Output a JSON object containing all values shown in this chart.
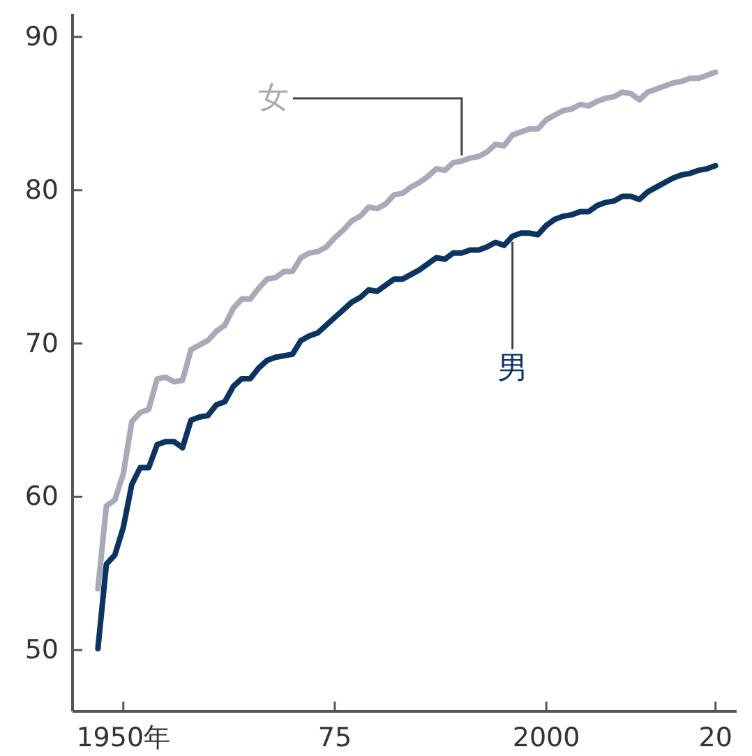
{
  "chart_data": {
    "type": "line",
    "x": [
      1947,
      1948,
      1949,
      1950,
      1951,
      1952,
      1953,
      1954,
      1955,
      1956,
      1957,
      1958,
      1959,
      1960,
      1961,
      1962,
      1963,
      1964,
      1965,
      1966,
      1967,
      1968,
      1969,
      1970,
      1971,
      1972,
      1973,
      1974,
      1975,
      1976,
      1977,
      1978,
      1979,
      1980,
      1981,
      1982,
      1983,
      1984,
      1985,
      1986,
      1987,
      1988,
      1989,
      1990,
      1991,
      1992,
      1993,
      1994,
      1995,
      1996,
      1997,
      1998,
      1999,
      2000,
      2001,
      2002,
      2003,
      2004,
      2005,
      2006,
      2007,
      2008,
      2009,
      2010,
      2011,
      2012,
      2013,
      2014,
      2015,
      2016,
      2017,
      2018,
      2019,
      2020
    ],
    "series": [
      {
        "name": "女",
        "color": "#a9a9ba",
        "values": [
          54.0,
          59.4,
          59.8,
          61.5,
          64.9,
          65.5,
          65.7,
          67.7,
          67.8,
          67.5,
          67.6,
          69.6,
          69.9,
          70.2,
          70.8,
          71.2,
          72.3,
          72.9,
          72.9,
          73.6,
          74.2,
          74.3,
          74.7,
          74.7,
          75.6,
          75.9,
          76.0,
          76.3,
          76.9,
          77.4,
          78.0,
          78.3,
          78.9,
          78.8,
          79.1,
          79.7,
          79.8,
          80.2,
          80.5,
          80.9,
          81.4,
          81.3,
          81.8,
          81.9,
          82.1,
          82.2,
          82.5,
          83.0,
          82.9,
          83.6,
          83.8,
          84.0,
          84.0,
          84.6,
          84.9,
          85.2,
          85.3,
          85.6,
          85.5,
          85.8,
          86.0,
          86.1,
          86.4,
          86.3,
          85.9,
          86.4,
          86.6,
          86.8,
          87.0,
          87.1,
          87.3,
          87.3,
          87.5,
          87.7
        ]
      },
      {
        "name": "男",
        "color": "#0c3461",
        "values": [
          50.1,
          55.6,
          56.2,
          58.0,
          60.8,
          61.9,
          61.9,
          63.4,
          63.6,
          63.6,
          63.2,
          65.0,
          65.2,
          65.3,
          66.0,
          66.2,
          67.2,
          67.7,
          67.7,
          68.4,
          68.9,
          69.1,
          69.2,
          69.3,
          70.2,
          70.5,
          70.7,
          71.2,
          71.7,
          72.2,
          72.7,
          73.0,
          73.5,
          73.4,
          73.8,
          74.2,
          74.2,
          74.5,
          74.8,
          75.2,
          75.6,
          75.5,
          75.9,
          75.9,
          76.1,
          76.1,
          76.3,
          76.6,
          76.4,
          77.0,
          77.2,
          77.2,
          77.1,
          77.7,
          78.1,
          78.3,
          78.4,
          78.6,
          78.6,
          79.0,
          79.2,
          79.3,
          79.6,
          79.6,
          79.4,
          79.9,
          80.2,
          80.5,
          80.8,
          81.0,
          81.1,
          81.3,
          81.4,
          81.6
        ]
      }
    ],
    "xlim": [
      1944,
      2022.5
    ],
    "xticks": [
      {
        "value": 1950,
        "label": "1950年"
      },
      {
        "value": 1975,
        "label": "75"
      },
      2000,
      {
        "value": 2020,
        "label": "20"
      }
    ],
    "ylim": [
      46,
      91.5
    ],
    "yticks": [
      50,
      60,
      70,
      80,
      90
    ]
  }
}
